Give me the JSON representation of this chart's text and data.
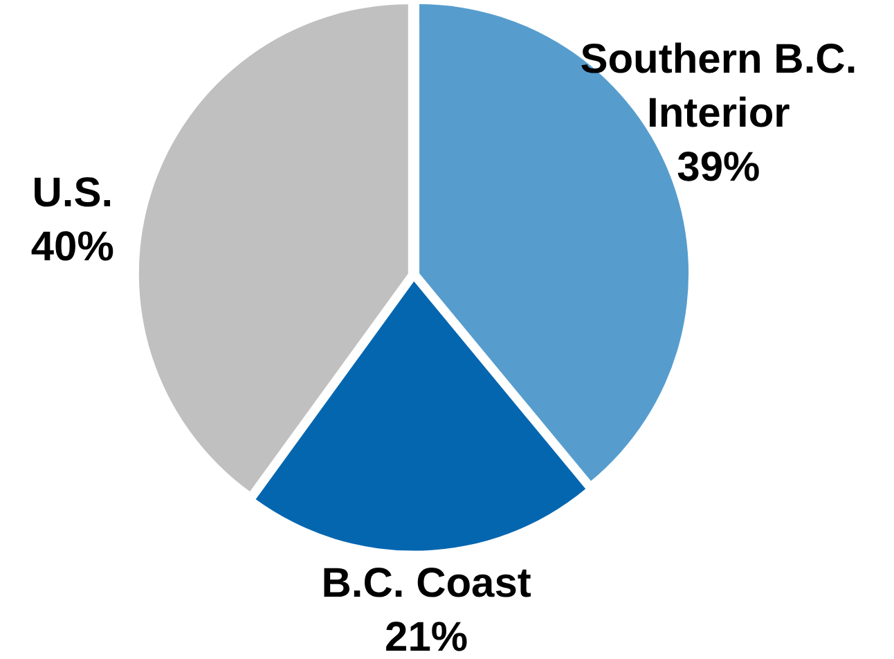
{
  "chart_data": {
    "type": "pie",
    "categories": [
      "Southern B.C. Interior",
      "B.C. Coast",
      "U.S."
    ],
    "values": [
      39,
      21,
      40
    ],
    "colors": [
      "#569dce",
      "#0566b0",
      "#c0c0c0"
    ],
    "value_labels": [
      "39%",
      "21%",
      "40%"
    ]
  }
}
